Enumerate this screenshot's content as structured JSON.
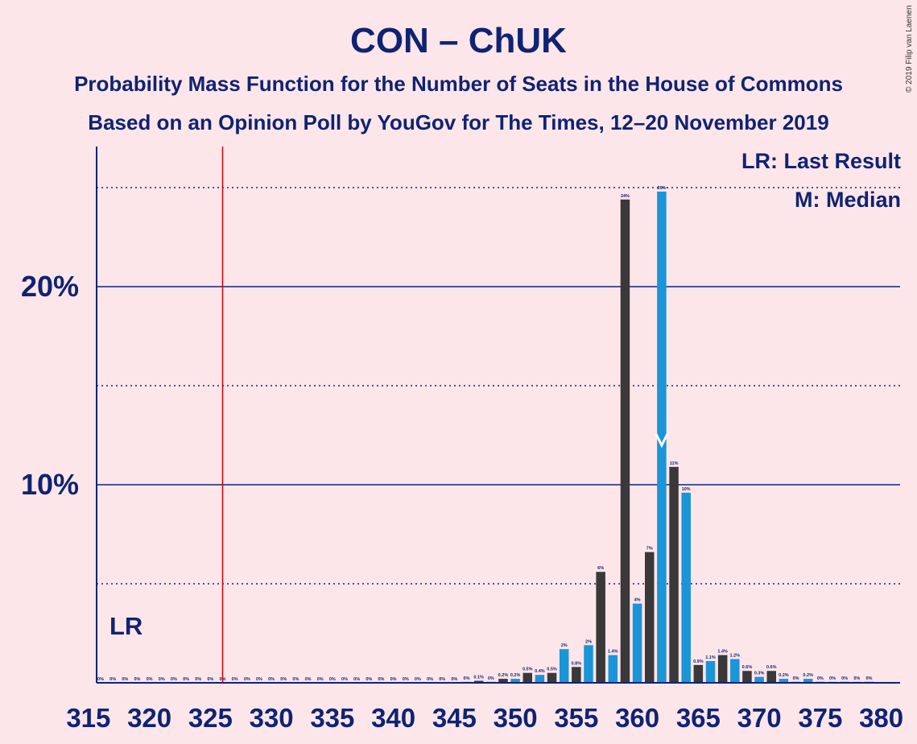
{
  "title": "CON – ChUK",
  "subtitle1": "Probability Mass Function for the Number of Seats in the House of Commons",
  "subtitle2": "Based on an Opinion Poll by YouGov for The Times, 12–20 November 2019",
  "copyright": "© 2019 Filip van Laenen",
  "legend": {
    "last_result": "LR: Last Result",
    "median": "M: Median"
  },
  "colors": {
    "background": "#fde6ea",
    "text": "#0f2372",
    "bar_dark": "#3a3838",
    "bar_blue": "#1a95d8",
    "last_result_line": "#cc0000"
  },
  "chart_data": {
    "type": "bar",
    "x_ticks": [
      315,
      320,
      325,
      330,
      335,
      340,
      345,
      350,
      355,
      360,
      365,
      370,
      375,
      380
    ],
    "y_ticks": [
      "10%",
      "20%"
    ],
    "y_tick_values": [
      10,
      20
    ],
    "ylim": [
      0,
      27
    ],
    "xlim": [
      315,
      380
    ],
    "last_result": 326,
    "last_result_label": "LR",
    "median": 362,
    "grid": true,
    "x": [
      316,
      317,
      318,
      319,
      320,
      321,
      322,
      323,
      324,
      325,
      326,
      327,
      328,
      329,
      330,
      331,
      332,
      333,
      334,
      335,
      336,
      337,
      338,
      339,
      340,
      341,
      342,
      343,
      344,
      345,
      346,
      347,
      348,
      349,
      350,
      351,
      352,
      353,
      354,
      355,
      356,
      357,
      358,
      359,
      360,
      361,
      362,
      363,
      364,
      365,
      366,
      367,
      368,
      369,
      370,
      371,
      372,
      373,
      374,
      375,
      376,
      377,
      378,
      379
    ],
    "values": [
      0,
      0,
      0,
      0,
      0,
      0,
      0,
      0,
      0,
      0,
      0,
      0,
      0,
      0,
      0,
      0,
      0,
      0,
      0,
      0,
      0,
      0,
      0,
      0,
      0,
      0,
      0,
      0,
      0,
      0,
      0.05,
      0.1,
      0.05,
      0.2,
      0.2,
      0.5,
      0.4,
      0.5,
      1.7,
      0.8,
      1.9,
      5.6,
      1.4,
      24.4,
      4.0,
      6.6,
      24.8,
      10.9,
      9.6,
      0.9,
      1.1,
      1.4,
      1.2,
      0.6,
      0.3,
      0.6,
      0.2,
      0.05,
      0.2,
      0.05,
      0.05,
      0.05,
      0.05,
      0.05
    ],
    "labels": [
      "0%",
      "0%",
      "0%",
      "0%",
      "0%",
      "0%",
      "0%",
      "0%",
      "0%",
      "0%",
      "0%",
      "0%",
      "0%",
      "0%",
      "0%",
      "0%",
      "0%",
      "0%",
      "0%",
      "0%",
      "0%",
      "0%",
      "0%",
      "0%",
      "0%",
      "0%",
      "0%",
      "0%",
      "0%",
      "0%",
      "0%",
      "0.1%",
      "0%",
      "0.2%",
      "0.2%",
      "0.5%",
      "0.4%",
      "0.5%",
      "2%",
      "0.8%",
      "2%",
      "6%",
      "1.4%",
      "24%",
      "4%",
      "7%",
      "25%",
      "11%",
      "10%",
      "0.9%",
      "1.1%",
      "1.4%",
      "1.2%",
      "0.6%",
      "0.3%",
      "0.6%",
      "0.2%",
      "0%",
      "0.2%",
      "0%",
      "0%",
      "0%",
      "0%",
      "0%"
    ]
  }
}
